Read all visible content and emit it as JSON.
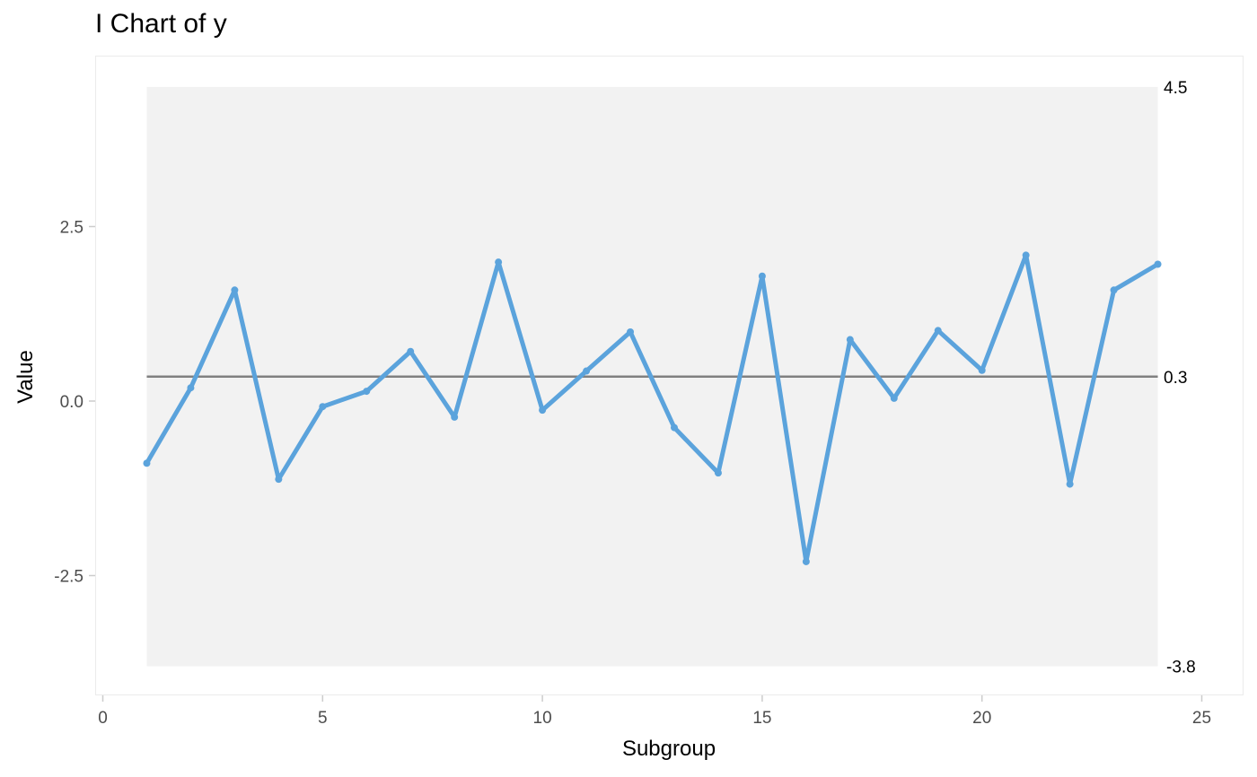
{
  "title": "I Chart of y",
  "chart_data": {
    "type": "line",
    "title": "I Chart of y",
    "xlabel": "Subgroup",
    "ylabel": "Value",
    "xlim": [
      0,
      25
    ],
    "ylim": [
      -3.8,
      4.5
    ],
    "x_ticks": [
      0,
      5,
      10,
      15,
      20,
      25
    ],
    "y_ticks": [
      -2.5,
      0.0,
      2.5
    ],
    "y_tick_labels": [
      "-2.5",
      "0.0",
      "2.5"
    ],
    "limits": {
      "ucl": 4.5,
      "ucl_label": "4.5",
      "center": 0.35,
      "center_label": "0.3",
      "lcl": -3.8,
      "lcl_label": "-3.8"
    },
    "series": [
      {
        "x": [
          1,
          2,
          3,
          4,
          5,
          6,
          7,
          8,
          9,
          10,
          11,
          12,
          13,
          14,
          15,
          16,
          17,
          18,
          19,
          20,
          21,
          22,
          23,
          24
        ],
        "values": [
          -0.89,
          0.19,
          1.59,
          -1.12,
          -0.08,
          0.14,
          0.71,
          -0.23,
          1.99,
          -0.13,
          0.43,
          0.99,
          -0.38,
          -1.03,
          1.79,
          -2.3,
          0.88,
          0.04,
          1.01,
          0.44,
          2.09,
          -1.19,
          1.59,
          1.96
        ]
      }
    ],
    "colors": {
      "line": "#5ba3dc",
      "center": "#808080",
      "band": "#f2f2f2",
      "axis_text": "#4d4d4d",
      "grid_frame": "#ebebeb"
    },
    "grid": false
  }
}
